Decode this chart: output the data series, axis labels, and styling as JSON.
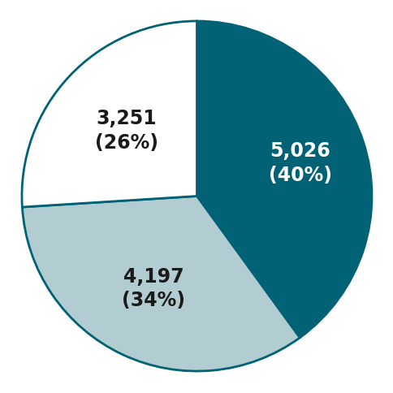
{
  "slices": [
    {
      "label": "5,026\n(40%)",
      "value": 40,
      "color": "#006274",
      "text_color": "#ffffff"
    },
    {
      "label": "4,197\n(34%)",
      "value": 34,
      "color": "#b2cdd1",
      "text_color": "#1a1a1a"
    },
    {
      "label": "3,251\n(26%)",
      "value": 26,
      "color": "#ffffff",
      "text_color": "#1a1a1a"
    }
  ],
  "edge_color": "#006274",
  "edge_width": 2.0,
  "figsize": [
    4.85,
    4.85
  ],
  "dpi": 100,
  "startangle": 90,
  "label_fontsize": 17,
  "label_fontweight": "bold",
  "text_radii": [
    0.62,
    0.58,
    0.55
  ]
}
